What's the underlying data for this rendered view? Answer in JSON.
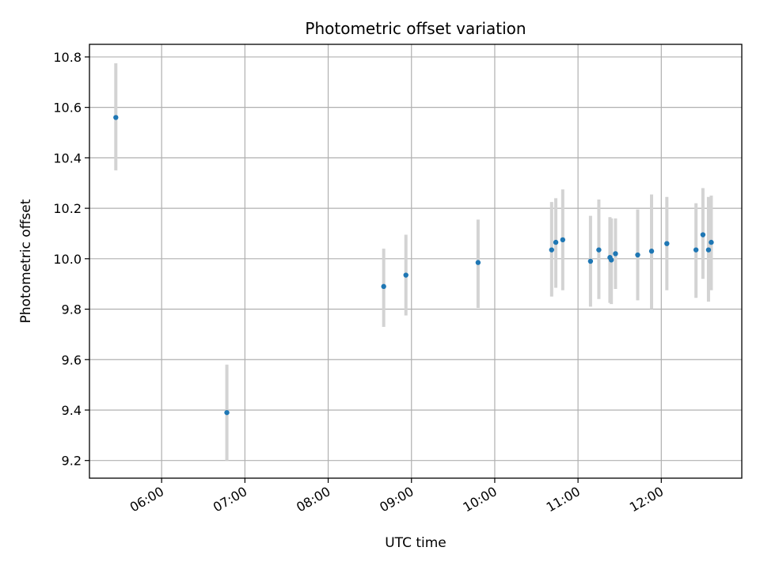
{
  "chart_data": {
    "type": "scatter",
    "title": "Photometric offset variation",
    "xlabel": "UTC time",
    "ylabel": "Photometric offset",
    "x_type": "time",
    "xlim": [
      "05:08",
      "12:58"
    ],
    "ylim": [
      9.13,
      10.85
    ],
    "x_ticks": [
      "06:00",
      "07:00",
      "08:00",
      "09:00",
      "10:00",
      "11:00",
      "12:00"
    ],
    "y_ticks": [
      "9.2",
      "9.4",
      "9.6",
      "9.8",
      "10.0",
      "10.2",
      "10.4",
      "10.6",
      "10.8"
    ],
    "grid": true,
    "point_color": "#1f77b4",
    "errorbar_color": "#d3d3d3",
    "points": [
      {
        "x": "05:27",
        "y": 10.56,
        "ylo": 10.35,
        "yhi": 10.775
      },
      {
        "x": "06:47",
        "y": 9.39,
        "ylo": 9.2,
        "yhi": 9.58
      },
      {
        "x": "08:40",
        "y": 9.89,
        "ylo": 9.73,
        "yhi": 10.04
      },
      {
        "x": "08:56",
        "y": 9.935,
        "ylo": 9.775,
        "yhi": 10.095
      },
      {
        "x": "09:48",
        "y": 9.985,
        "ylo": 9.805,
        "yhi": 10.155
      },
      {
        "x": "10:41",
        "y": 10.035,
        "ylo": 9.85,
        "yhi": 10.225
      },
      {
        "x": "10:44",
        "y": 10.065,
        "ylo": 9.885,
        "yhi": 10.24
      },
      {
        "x": "10:49",
        "y": 10.075,
        "ylo": 9.875,
        "yhi": 10.275
      },
      {
        "x": "11:09",
        "y": 9.99,
        "ylo": 9.81,
        "yhi": 10.17
      },
      {
        "x": "11:15",
        "y": 10.035,
        "ylo": 9.84,
        "yhi": 10.235
      },
      {
        "x": "11:23",
        "y": 10.005,
        "ylo": 9.825,
        "yhi": 10.165
      },
      {
        "x": "11:24",
        "y": 9.995,
        "ylo": 9.82,
        "yhi": 10.16
      },
      {
        "x": "11:27",
        "y": 10.02,
        "ylo": 9.88,
        "yhi": 10.16
      },
      {
        "x": "11:43",
        "y": 10.015,
        "ylo": 9.835,
        "yhi": 10.195
      },
      {
        "x": "11:53",
        "y": 10.03,
        "ylo": 9.8,
        "yhi": 10.255
      },
      {
        "x": "12:04",
        "y": 10.06,
        "ylo": 9.875,
        "yhi": 10.245
      },
      {
        "x": "12:25",
        "y": 10.035,
        "ylo": 9.845,
        "yhi": 10.22
      },
      {
        "x": "12:30",
        "y": 10.095,
        "ylo": 9.92,
        "yhi": 10.28
      },
      {
        "x": "12:34",
        "y": 10.035,
        "ylo": 9.83,
        "yhi": 10.245
      },
      {
        "x": "12:36",
        "y": 10.065,
        "ylo": 9.875,
        "yhi": 10.25
      }
    ]
  }
}
